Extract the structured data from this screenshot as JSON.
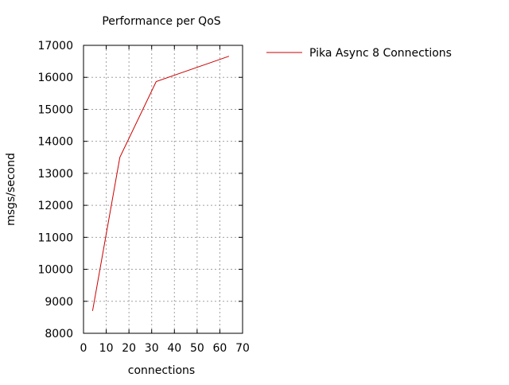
{
  "chart_data": {
    "type": "line",
    "title": "Performance per QoS",
    "xlabel": "connections",
    "ylabel": "msgs/second",
    "xlim": [
      0,
      70
    ],
    "ylim": [
      8000,
      17000
    ],
    "xticks": [
      0,
      10,
      20,
      30,
      40,
      50,
      60,
      70
    ],
    "yticks": [
      8000,
      9000,
      10000,
      11000,
      12000,
      13000,
      14000,
      15000,
      16000,
      17000
    ],
    "grid": true,
    "legend_position": "top-right outside plot",
    "series": [
      {
        "name": "Pika Async 8 Connections",
        "color": "#cc0000",
        "x": [
          4,
          16,
          32,
          64
        ],
        "y": [
          8700,
          13500,
          15870,
          16660
        ]
      }
    ]
  }
}
